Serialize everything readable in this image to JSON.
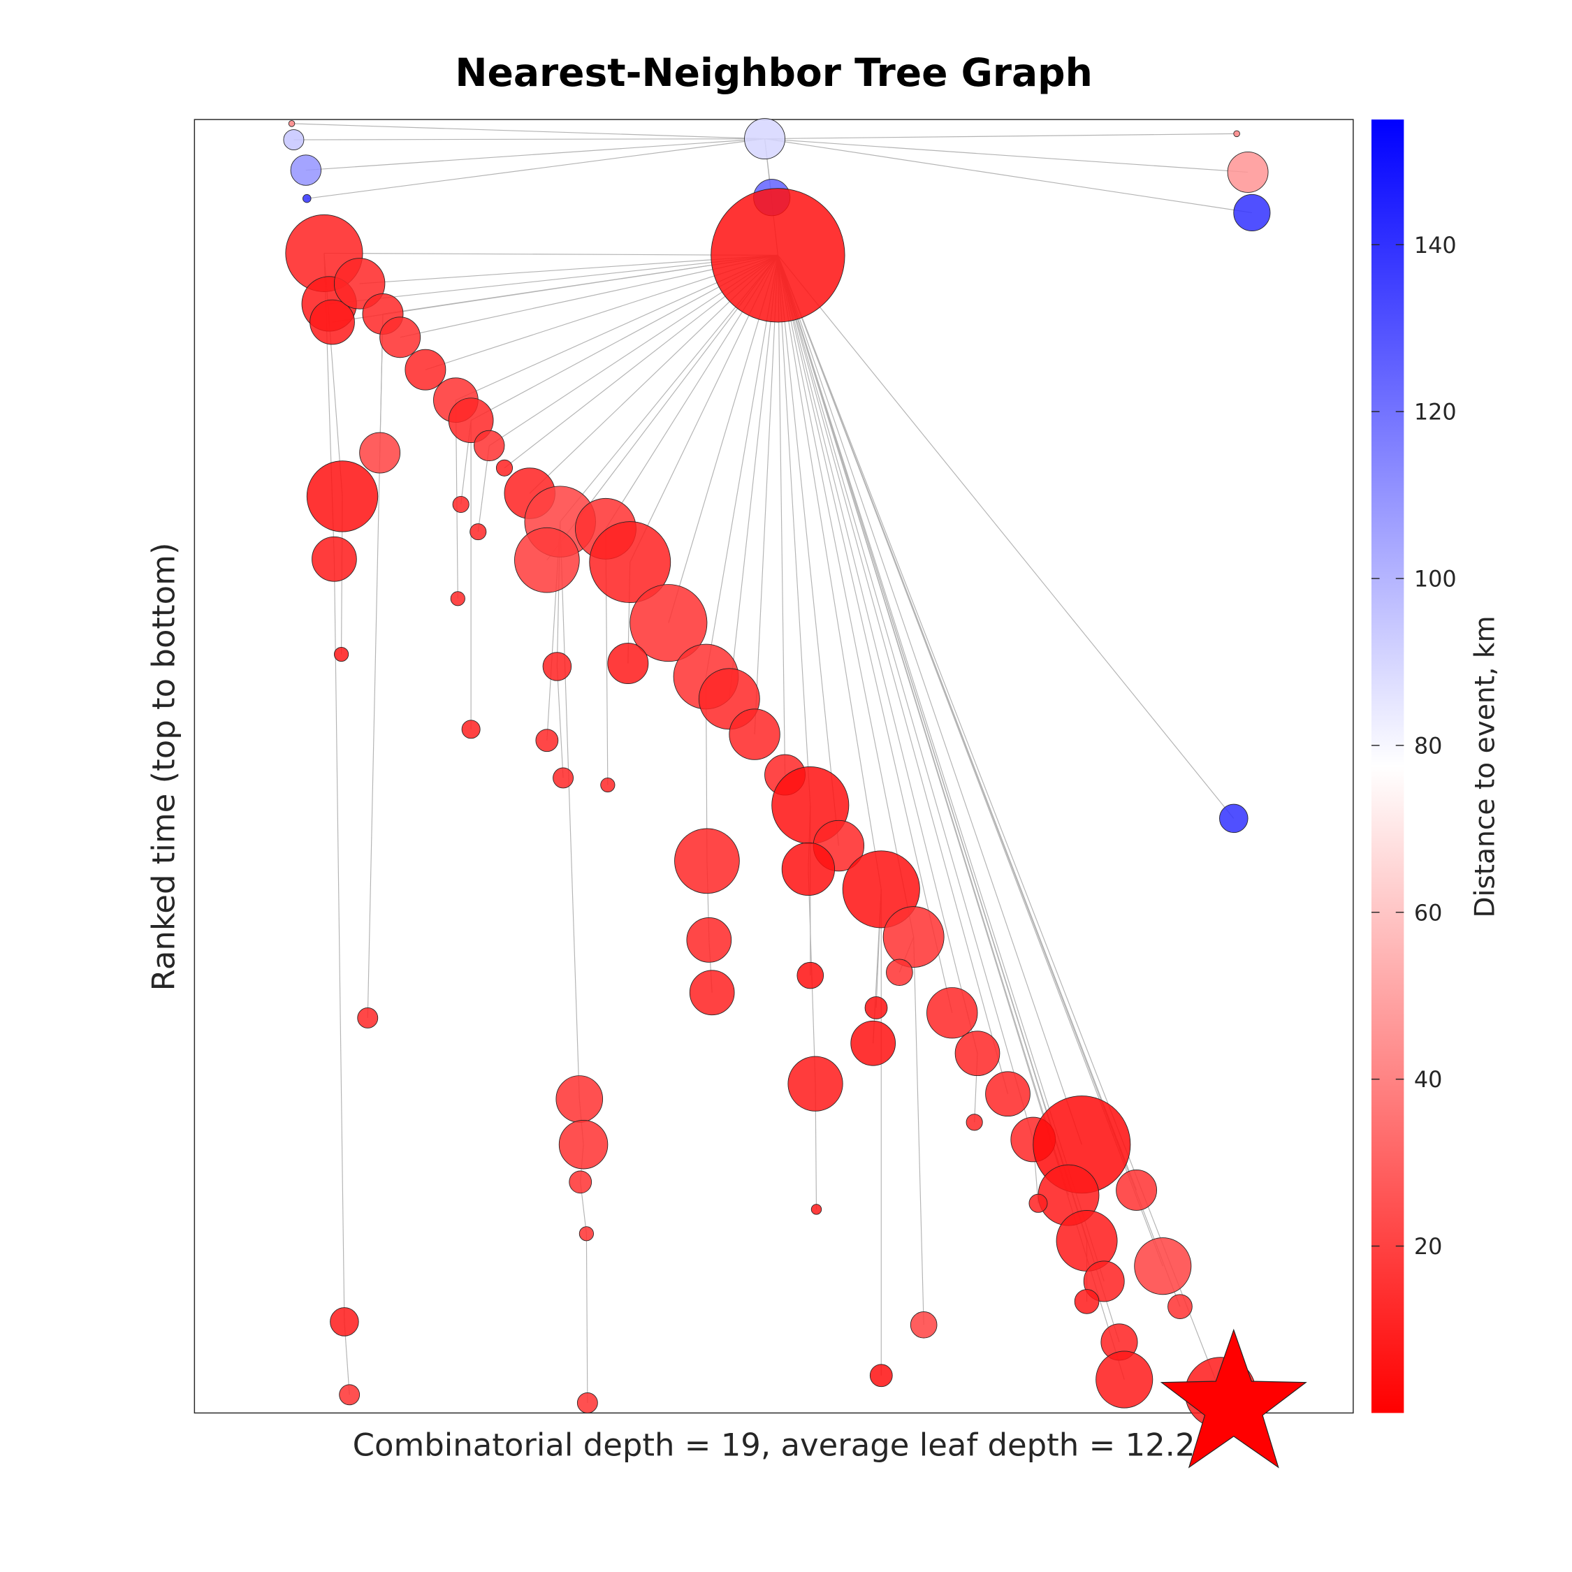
{
  "chart_data": {
    "type": "scatter",
    "title": "Nearest-Neighbor Tree Graph",
    "xlabel": "Combinatorial depth = 19, average leaf depth = 12.2",
    "ylabel": "Ranked time (top to bottom)",
    "xlim": [
      0,
      1144
    ],
    "ylim": [
      0,
      1277
    ],
    "yreverse": true,
    "edge_color": "#b3b3b3",
    "colorbar": {
      "label": "Distance to event, km",
      "lim": [
        0,
        155
      ],
      "ticks": [
        20,
        40,
        60,
        80,
        100,
        120,
        140
      ],
      "colors": [
        "#ff0000",
        "#ffffff",
        "#0000ff"
      ]
    },
    "nodes": {
      "x": [
        563,
        96,
        98,
        110,
        111,
        1029,
        1040,
        1044,
        570,
        576,
        128,
        133,
        136,
        163,
        186,
        203,
        228,
        258,
        273,
        291,
        306,
        331,
        361,
        348,
        406,
        430,
        468,
        505,
        528,
        553,
        583,
        608,
        636,
        678,
        710,
        748,
        773,
        803,
        828,
        876,
        863,
        881,
        930,
        956,
        898,
        913,
        973,
        918,
        1013,
        146,
        138,
        183,
        145,
        148,
        153,
        171,
        263,
        280,
        260,
        273,
        348,
        358,
        364,
        380,
        384,
        381,
        387,
        388,
        428,
        506,
        508,
        511,
        408,
        608,
        606,
        613,
        614,
        670,
        673,
        696,
        720,
        678,
        770,
        1026,
        833,
        881
      ],
      "y": [
        19,
        4,
        20,
        50,
        78,
        14,
        52,
        92,
        77,
        134,
        132,
        182,
        200,
        162,
        192,
        215,
        247,
        277,
        297,
        322,
        344,
        369,
        397,
        435,
        404,
        437,
        497,
        550,
        572,
        607,
        647,
        677,
        717,
        760,
        807,
        882,
        922,
        962,
        1007,
        1012,
        1062,
        1107,
        1057,
        1132,
        1147,
        1207,
        1172,
        1244,
        1257,
        372,
        434,
        329,
        528,
        1187,
        1259,
        887,
        380,
        407,
        473,
        602,
        613,
        540,
        650,
        967,
        1012,
        1049,
        1100,
        1267,
        537,
        732,
        810,
        862,
        657,
        845,
        740,
        952,
        1076,
        912,
        877,
        842,
        1190,
        1240,
        990,
        690,
        1070,
        1167
      ],
      "sizes": [
        20,
        3,
        10,
        15,
        4,
        3,
        20,
        18,
        18,
        66,
        38,
        27,
        22,
        25,
        20,
        20,
        20,
        22,
        22,
        15,
        8,
        25,
        35,
        32,
        30,
        40,
        38,
        32,
        30,
        25,
        20,
        38,
        25,
        38,
        30,
        25,
        22,
        22,
        22,
        48,
        30,
        30,
        20,
        28,
        20,
        18,
        12,
        28,
        35,
        35,
        22,
        20,
        7,
        14,
        10,
        10,
        8,
        8,
        7,
        9,
        11,
        14,
        10,
        23,
        24,
        11,
        7,
        10,
        20,
        32,
        22,
        22,
        7,
        13,
        26,
        27,
        5,
        22,
        11,
        13,
        13,
        11,
        8,
        14,
        9,
        12
      ],
      "distance": [
        90,
        40,
        95,
        110,
        140,
        40,
        45,
        140,
        125,
        5,
        10,
        8,
        8,
        12,
        12,
        14,
        12,
        15,
        12,
        15,
        10,
        10,
        20,
        18,
        15,
        10,
        15,
        15,
        12,
        12,
        12,
        5,
        12,
        5,
        15,
        12,
        12,
        12,
        12,
        3,
        8,
        8,
        15,
        20,
        10,
        10,
        15,
        8,
        8,
        5,
        8,
        20,
        8,
        8,
        15,
        12,
        12,
        12,
        12,
        10,
        12,
        10,
        12,
        15,
        15,
        15,
        15,
        15,
        8,
        12,
        12,
        10,
        12,
        5,
        5,
        8,
        8,
        5,
        5,
        15,
        20,
        5,
        12,
        140,
        10,
        8
      ],
      "parents": [
        null,
        0,
        0,
        0,
        0,
        0,
        0,
        0,
        0,
        0,
        9,
        9,
        9,
        9,
        9,
        9,
        9,
        9,
        9,
        9,
        9,
        9,
        9,
        9,
        9,
        9,
        9,
        9,
        9,
        9,
        9,
        9,
        9,
        9,
        9,
        9,
        9,
        9,
        9,
        9,
        9,
        9,
        9,
        9,
        9,
        9,
        9,
        9,
        9,
        10,
        10,
        14,
        49,
        50,
        53,
        14,
        18,
        19,
        17,
        18,
        22,
        22,
        61,
        22,
        63,
        64,
        65,
        66,
        25,
        27,
        69,
        70,
        24,
        31,
        31,
        74,
        75,
        33,
        33,
        34,
        34,
        33,
        36,
        9,
        38,
        41
      ]
    },
    "event": {
      "x": 1026,
      "y": 1270,
      "color": "#ff0000"
    }
  }
}
